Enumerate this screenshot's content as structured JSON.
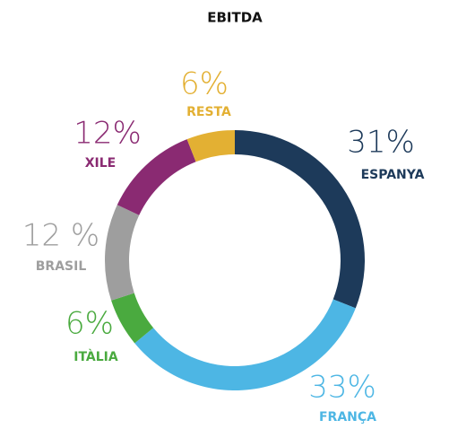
{
  "chart_data": {
    "type": "donut",
    "title": "EBITDA",
    "categories": [
      "ESPANYA",
      "FRANÇA",
      "ITÀLIA",
      "BRASIL",
      "XILE",
      "RESTA"
    ],
    "values": [
      31,
      33,
      6,
      12,
      12,
      6
    ],
    "value_labels": [
      "31%",
      "33%",
      "6%",
      "12 %",
      "12%",
      "6%"
    ],
    "colors": [
      "#1d3a5a",
      "#4db6e4",
      "#4aaa3f",
      "#9e9e9e",
      "#8a2a72",
      "#e3b033"
    ]
  }
}
